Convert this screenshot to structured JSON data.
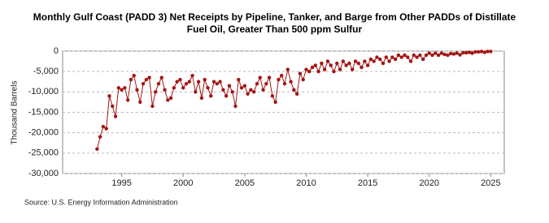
{
  "chart_data": {
    "type": "line",
    "title": "Monthly Gulf Coast (PADD 3) Net Receipts by Pipeline, Tanker, and Barge from Other PADDs of Distillate Fuel Oil, Greater Than 500 ppm Sulfur",
    "y_label": "Thousand Barrels",
    "source": "Source: U.S. Energy Information Administration",
    "x": [
      1993,
      1993.25,
      1993.5,
      1993.75,
      1994,
      1994.25,
      1994.5,
      1994.75,
      1995,
      1995.25,
      1995.5,
      1995.75,
      1996,
      1996.25,
      1996.5,
      1996.75,
      1997,
      1997.25,
      1997.5,
      1997.75,
      1998,
      1998.25,
      1998.5,
      1998.75,
      1999,
      1999.25,
      1999.5,
      1999.75,
      2000,
      2000.25,
      2000.5,
      2000.75,
      2001,
      2001.25,
      2001.5,
      2001.75,
      2002,
      2002.25,
      2002.5,
      2002.75,
      2003,
      2003.25,
      2003.5,
      2003.75,
      2004,
      2004.25,
      2004.5,
      2004.75,
      2005,
      2005.25,
      2005.5,
      2005.75,
      2006,
      2006.25,
      2006.5,
      2006.75,
      2007,
      2007.25,
      2007.5,
      2007.75,
      2008,
      2008.25,
      2008.5,
      2008.75,
      2009,
      2009.25,
      2009.5,
      2009.75,
      2010,
      2010.25,
      2010.5,
      2010.75,
      2011,
      2011.25,
      2011.5,
      2011.75,
      2012,
      2012.25,
      2012.5,
      2012.75,
      2013,
      2013.25,
      2013.5,
      2013.75,
      2014,
      2014.25,
      2014.5,
      2014.75,
      2015,
      2015.25,
      2015.5,
      2015.75,
      2016,
      2016.25,
      2016.5,
      2016.75,
      2017,
      2017.25,
      2017.5,
      2017.75,
      2018,
      2018.25,
      2018.5,
      2018.75,
      2019,
      2019.25,
      2019.5,
      2019.75,
      2020,
      2020.25,
      2020.5,
      2020.75,
      2021,
      2021.25,
      2021.5,
      2021.75,
      2022,
      2022.25,
      2022.5,
      2022.75,
      2023,
      2023.25,
      2023.5,
      2023.75,
      2024,
      2024.25,
      2024.5,
      2024.75,
      2025
    ],
    "series": [
      {
        "name": "Net Receipts",
        "color": "#a31515",
        "values": [
          -24000,
          -21000,
          -18500,
          -19000,
          -11000,
          -13500,
          -16000,
          -9000,
          -9500,
          -9000,
          -12000,
          -7000,
          -6000,
          -9500,
          -12500,
          -8000,
          -7000,
          -6500,
          -13500,
          -10000,
          -8000,
          -6500,
          -9500,
          -12000,
          -11500,
          -9000,
          -7500,
          -7000,
          -9000,
          -8000,
          -7500,
          -6000,
          -10000,
          -7500,
          -11500,
          -7000,
          -9000,
          -11000,
          -7500,
          -8000,
          -7500,
          -9500,
          -11000,
          -8500,
          -10000,
          -13500,
          -7000,
          -9000,
          -8500,
          -10500,
          -9500,
          -10000,
          -8000,
          -6500,
          -9500,
          -8000,
          -6500,
          -11000,
          -12500,
          -7000,
          -6000,
          -8000,
          -4500,
          -7500,
          -9500,
          -10500,
          -5500,
          -7000,
          -4500,
          -5000,
          -4000,
          -3500,
          -5000,
          -3000,
          -4500,
          -2500,
          -3500,
          -5000,
          -3000,
          -4500,
          -2500,
          -3500,
          -3000,
          -4500,
          -2500,
          -3000,
          -4000,
          -2500,
          -3500,
          -2000,
          -2500,
          -1500,
          -2000,
          -3000,
          -1500,
          -2500,
          -1500,
          -2000,
          -1000,
          -1500,
          -1000,
          -1500,
          -2500,
          -1000,
          -1500,
          -1000,
          -2000,
          -1000,
          -500,
          -1000,
          -500,
          -1000,
          -500,
          -800,
          -1000,
          -600,
          -700,
          -500,
          -900,
          -400,
          -400,
          -300,
          -500,
          -200,
          -200,
          -100,
          -300,
          -100,
          -100
        ]
      }
    ],
    "xlim": [
      1990.2,
      2026.1
    ],
    "xticks": [
      1995,
      2000,
      2005,
      2010,
      2015,
      2020,
      2025
    ],
    "ylim": [
      -30000,
      0
    ],
    "yticks": [
      {
        "value": -30000,
        "label": "-30,000"
      },
      {
        "value": -25000,
        "label": "-25,000"
      },
      {
        "value": -20000,
        "label": "-20,000"
      },
      {
        "value": -15000,
        "label": "-15,000"
      },
      {
        "value": -10000,
        "label": "-10,000"
      },
      {
        "value": -5000,
        "label": "-5,000"
      },
      0
    ],
    "grid": true
  }
}
